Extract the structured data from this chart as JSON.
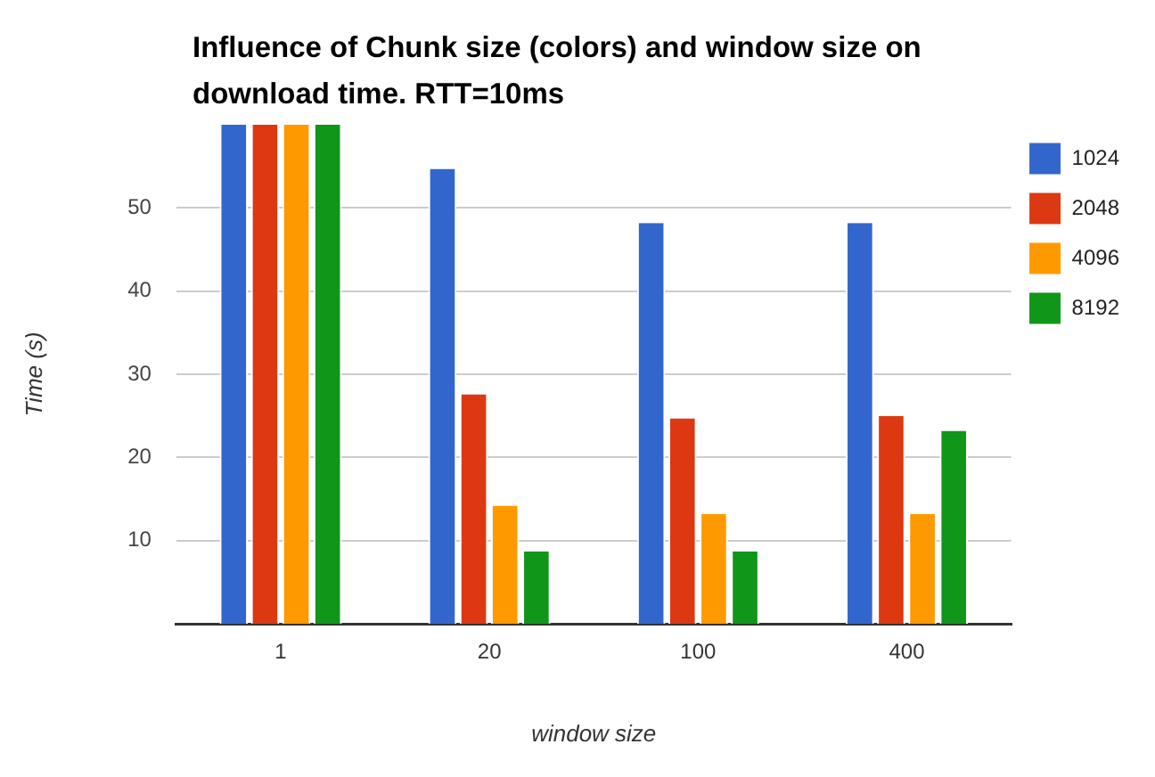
{
  "chart_data": {
    "type": "bar",
    "title": "Influence of Chunk size (colors) and window size on download time. RTT=10ms",
    "xlabel": "window size",
    "ylabel": "Time (s)",
    "categories": [
      "1",
      "20",
      "100",
      "400"
    ],
    "series": [
      {
        "name": "1024",
        "color": "#3366cc",
        "values": [
          60,
          54.7,
          48.2,
          48.2
        ]
      },
      {
        "name": "2048",
        "color": "#dc3912",
        "values": [
          60,
          27.6,
          24.7,
          25.0
        ]
      },
      {
        "name": "4096",
        "color": "#ff9900",
        "values": [
          60,
          14.2,
          13.2,
          13.2
        ]
      },
      {
        "name": "8192",
        "color": "#109618",
        "values": [
          60,
          8.7,
          8.7,
          23.2
        ]
      }
    ],
    "ylim": [
      0,
      60
    ],
    "yticks": [
      10,
      20,
      30,
      40,
      50
    ],
    "grid": "y",
    "legend": "right"
  }
}
